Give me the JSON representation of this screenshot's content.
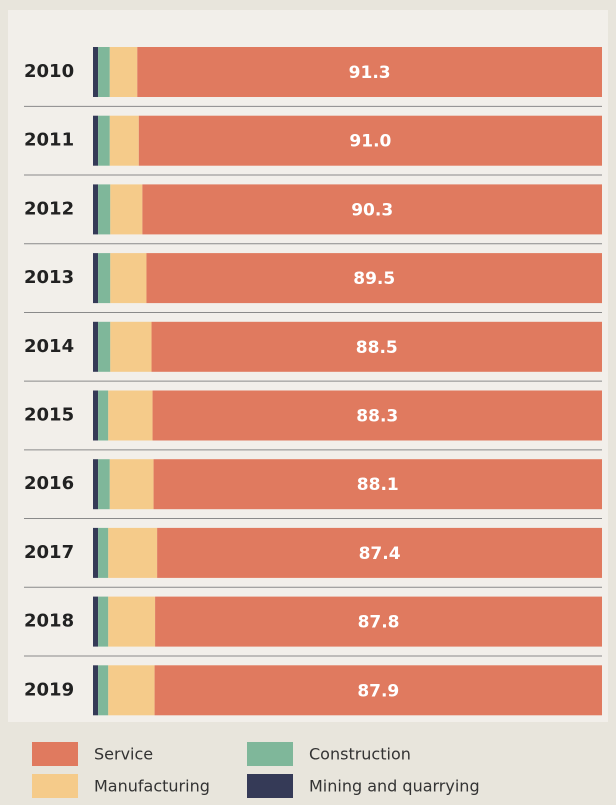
{
  "chart_data": {
    "type": "stacked-bar-horizontal",
    "categories": [
      "2010",
      "2011",
      "2012",
      "2013",
      "2014",
      "2015",
      "2016",
      "2017",
      "2018",
      "2019"
    ],
    "series": [
      {
        "name": "Mining and quarrying",
        "color": "#353a57",
        "values": [
          1.0,
          1.0,
          1.0,
          1.0,
          1.0,
          1.0,
          1.0,
          1.0,
          1.0,
          1.0
        ]
      },
      {
        "name": "Construction",
        "color": "#7fb79a",
        "values": [
          2.3,
          2.3,
          2.4,
          2.4,
          2.4,
          2.0,
          2.3,
          2.0,
          2.0,
          2.0
        ]
      },
      {
        "name": "Manufacturing",
        "color": "#f5cb8a",
        "values": [
          5.4,
          5.7,
          6.3,
          7.1,
          8.1,
          8.7,
          8.6,
          9.6,
          9.2,
          9.1
        ]
      },
      {
        "name": "Service",
        "color": "#e07a5f",
        "values": [
          91.3,
          91.0,
          90.3,
          89.5,
          88.5,
          88.3,
          88.1,
          87.4,
          87.8,
          87.9
        ],
        "value_labels": [
          "91.3",
          "91.0",
          "90.3",
          "89.5",
          "88.5",
          "88.3",
          "88.1",
          "87.4",
          "87.8",
          "87.9"
        ]
      }
    ]
  }
}
